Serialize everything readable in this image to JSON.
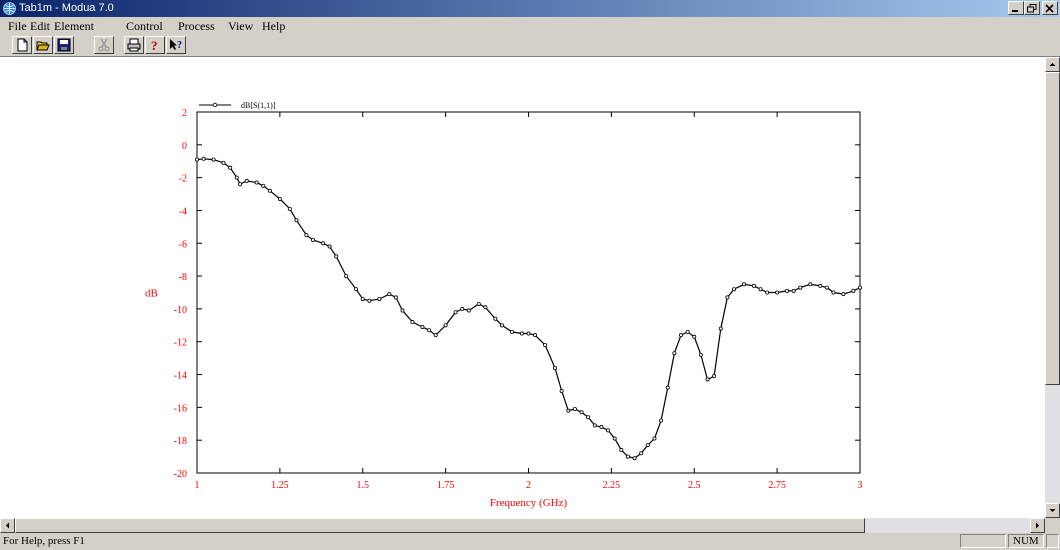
{
  "window": {
    "title": "Tab1m - Modua 7.0"
  },
  "menu": [
    "File",
    "Edit",
    "Element",
    "Control",
    "Process",
    "View",
    "Help"
  ],
  "toolbar": {
    "buttons": [
      "new-icon",
      "open-icon",
      "save-icon",
      "cut-icon",
      "print-icon",
      "about-icon",
      "context-help-icon"
    ]
  },
  "status": {
    "help_text": "For Help, press F1",
    "num": "NUM"
  },
  "colors": {
    "axis_text": "#ff0000",
    "trace": "#000000",
    "plot_bg": "#ffffff"
  },
  "chart_data": {
    "type": "line",
    "xlabel": "Frequency (GHz)",
    "ylabel": "dB",
    "xlim": [
      1,
      3
    ],
    "ylim": [
      -20,
      2
    ],
    "xticks": [
      "1",
      "1.25",
      "1.5",
      "1.75",
      "2",
      "2.25",
      "2.5",
      "2.75",
      "3"
    ],
    "yticks": [
      "2",
      "0",
      "-2",
      "-4",
      "-6",
      "-8",
      "-10",
      "-12",
      "-14",
      "-16",
      "-18",
      "-20"
    ],
    "grid": false,
    "legend_position": "top-left",
    "series": [
      {
        "name": "dB[S(1,1)]",
        "x": [
          1.0,
          1.02,
          1.05,
          1.08,
          1.1,
          1.12,
          1.13,
          1.15,
          1.18,
          1.2,
          1.22,
          1.25,
          1.28,
          1.3,
          1.33,
          1.35,
          1.38,
          1.4,
          1.42,
          1.45,
          1.48,
          1.5,
          1.52,
          1.55,
          1.58,
          1.6,
          1.62,
          1.65,
          1.68,
          1.7,
          1.72,
          1.75,
          1.78,
          1.8,
          1.82,
          1.85,
          1.87,
          1.9,
          1.92,
          1.95,
          1.98,
          2.0,
          2.02,
          2.05,
          2.08,
          2.1,
          2.12,
          2.14,
          2.16,
          2.18,
          2.2,
          2.22,
          2.24,
          2.26,
          2.28,
          2.3,
          2.32,
          2.34,
          2.36,
          2.38,
          2.4,
          2.42,
          2.44,
          2.46,
          2.48,
          2.5,
          2.52,
          2.54,
          2.56,
          2.58,
          2.6,
          2.62,
          2.65,
          2.68,
          2.7,
          2.72,
          2.75,
          2.78,
          2.8,
          2.82,
          2.85,
          2.88,
          2.9,
          2.92,
          2.95,
          2.98,
          3.0
        ],
        "y": [
          -0.9,
          -0.85,
          -0.9,
          -1.1,
          -1.4,
          -2.0,
          -2.4,
          -2.2,
          -2.3,
          -2.5,
          -2.8,
          -3.3,
          -3.9,
          -4.6,
          -5.5,
          -5.8,
          -6.0,
          -6.2,
          -6.8,
          -8.0,
          -8.8,
          -9.4,
          -9.5,
          -9.4,
          -9.1,
          -9.3,
          -10.1,
          -10.8,
          -11.1,
          -11.3,
          -11.6,
          -11.0,
          -10.2,
          -10.0,
          -10.1,
          -9.7,
          -9.9,
          -10.6,
          -11.0,
          -11.4,
          -11.5,
          -11.5,
          -11.6,
          -12.2,
          -13.6,
          -15.0,
          -16.2,
          -16.1,
          -16.3,
          -16.6,
          -17.1,
          -17.2,
          -17.4,
          -17.9,
          -18.6,
          -19.0,
          -19.1,
          -18.8,
          -18.3,
          -17.9,
          -16.8,
          -14.8,
          -12.7,
          -11.6,
          -11.4,
          -11.7,
          -12.8,
          -14.3,
          -14.1,
          -11.2,
          -9.3,
          -8.8,
          -8.5,
          -8.6,
          -8.8,
          -9.0,
          -9.0,
          -8.9,
          -8.9,
          -8.7,
          -8.5,
          -8.6,
          -8.7,
          -9.0,
          -9.1,
          -8.9,
          -8.7
        ]
      }
    ]
  }
}
